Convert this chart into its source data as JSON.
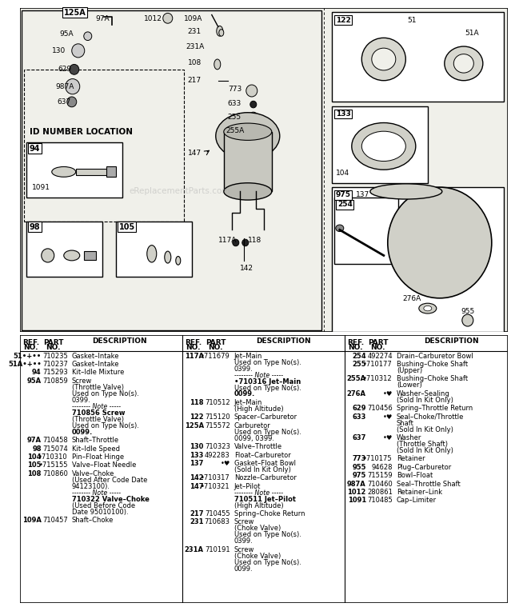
{
  "bg_color": "#ffffff",
  "diagram_bg": "#f0f0ea",
  "col1_data": [
    [
      "51•+••",
      "710235",
      "Gasket–Intake"
    ],
    [
      "51A•+••",
      "710237",
      "Gasket–Intake"
    ],
    [
      "94",
      "715293",
      "Kit–Idle Mixture"
    ],
    [
      "95A",
      "710859",
      "Screw\n(Throttle Valve)\nUsed on Type No(s).\n0399.\n-------- Note -----\n710856 Screw\n(Throttle Valve)\nUsed on Type No(s).\n0099."
    ],
    [
      "97A",
      "710458",
      "Shaft–Throttle"
    ],
    [
      "98",
      "715074",
      "Kit–Idle Speed"
    ],
    [
      "104",
      "•710310",
      "Pin–Float Hinge"
    ],
    [
      "105",
      "•715155",
      "Valve–Float Needle"
    ],
    [
      "108",
      "710860",
      "Valve–Choke\n(Used After Code Date\n94123100).\n-------- Note -----\n710322 Valve–Choke\n(Used Before Code\nDate 95010100)."
    ],
    [
      "109A",
      "710457",
      "Shaft–Choke"
    ]
  ],
  "col2_data": [
    [
      "117A",
      "•711679",
      "Jet–Main\nUsed on Type No(s).\n0399.\n-------- Note -----\n•710316 Jet–Main\nUsed on Type No(s).\n0099."
    ],
    [
      "118",
      "710512",
      "Jet–Main\n(High Altitude)"
    ],
    [
      "122",
      "715120",
      "Spacer–Carburetor"
    ],
    [
      "125A",
      "715572",
      "Carburetor\nUsed on Type No(s).\n0099, 0399."
    ],
    [
      "130",
      "710323",
      "Valve–Throttle"
    ],
    [
      "133",
      "492283",
      "Float–Carburetor"
    ],
    [
      "137",
      "•♥",
      "Gasket–Float Bowl\n(Sold In Kit Only)"
    ],
    [
      "142",
      "•710317",
      "Nozzle–Carburetor"
    ],
    [
      "147",
      "•710321",
      "Jet–Pilot\n-------- Note -----\n710511 Jet–Pilot\n(High Altitude)"
    ],
    [
      "217",
      "710455",
      "Spring–Choke Return"
    ],
    [
      "231",
      "710683",
      "Screw\n(Choke Valve)\nUsed on Type No(s).\n0399."
    ],
    [
      "231A",
      "710191",
      "Screw\n(Choke Valve)\nUsed on Type No(s).\n0099."
    ]
  ],
  "col3_data": [
    [
      "254",
      "492274",
      "Drain–Carburetor Bowl"
    ],
    [
      "255",
      "•710177",
      "Bushing–Choke Shaft\n(Upper)"
    ],
    [
      "255A",
      "•710312",
      "Bushing–Choke Shaft\n(Lower)"
    ],
    [
      "276A",
      "•♥",
      "Washer–Sealing\n(Sold In Kit Only)"
    ],
    [
      "629",
      "710456",
      "Spring–Throttle Return"
    ],
    [
      "633",
      "•♥",
      "Seal–Choke/Throttle\nShaft\n(Sold In Kit Only)"
    ],
    [
      "637",
      "•♥",
      "Washer\n(Throttle Shaft)\n(Sold In Kit Only)"
    ],
    [
      "773",
      "•710175",
      "Retainer"
    ],
    [
      "955",
      "94628",
      "Plug–Carburetor"
    ],
    [
      "975",
      "715159",
      "Bowl–Float"
    ],
    [
      "987A",
      "710460",
      "Seal–Throttle Shaft"
    ],
    [
      "1012",
      "280861",
      "Retainer–Link"
    ],
    [
      "1091",
      "710485",
      "Cap–Limiter"
    ]
  ]
}
